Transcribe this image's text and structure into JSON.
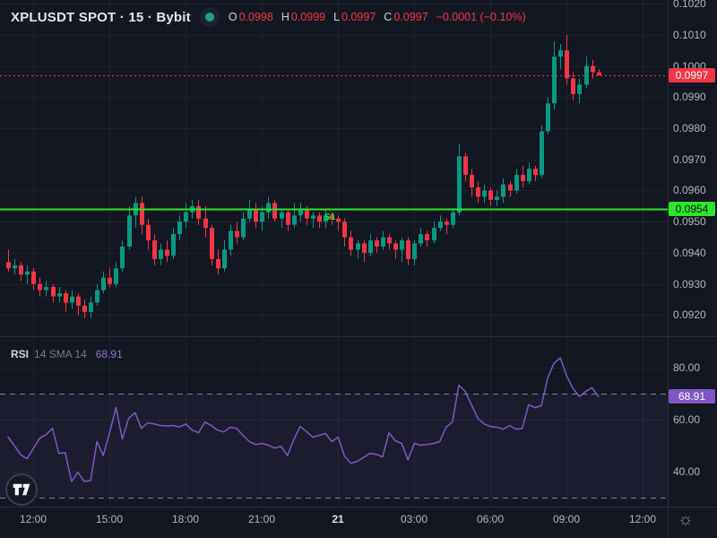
{
  "header": {
    "symbol_title": "XPLUSDT SPOT · 15 · Bybit",
    "ohlc": {
      "o_label": "O",
      "o_value": "0.0998",
      "h_label": "H",
      "h_value": "0.0999",
      "l_label": "L",
      "l_value": "0.0997",
      "c_label": "C",
      "c_value": "0.0997",
      "change": "−0.0001 (−0.10%)"
    }
  },
  "rsi_header": {
    "name": "RSI",
    "params": "14 SMA 14",
    "value": "68.91"
  },
  "price_axis": {
    "labels": [
      "0.1020",
      "0.1010",
      "0.1000",
      "0.0990",
      "0.0980",
      "0.0970",
      "0.0960",
      "0.0950",
      "0.0940",
      "0.0930",
      "0.0920"
    ],
    "last_price_tag": "0.0997",
    "pivot_tag": "0.0954"
  },
  "rsi_axis": {
    "labels": [
      "80.00",
      "60.00",
      "40.00"
    ],
    "value_tag": "68.91"
  },
  "time_axis": {
    "labels": [
      {
        "text": "12:00",
        "candle_index": 4
      },
      {
        "text": "15:00",
        "candle_index": 16
      },
      {
        "text": "18:00",
        "candle_index": 28
      },
      {
        "text": "21:00",
        "candle_index": 40
      },
      {
        "text": "21",
        "candle_index": 52,
        "emphasis": true
      },
      {
        "text": "03:00",
        "candle_index": 64
      },
      {
        "text": "06:00",
        "candle_index": 76
      },
      {
        "text": "09:00",
        "candle_index": 88
      },
      {
        "text": "12:00",
        "candle_index": 100
      }
    ]
  },
  "colors": {
    "background": "#131722",
    "grid": "#1e222d",
    "separator": "#2a2e39",
    "up": "#089981",
    "down": "#f23645",
    "pivot_green": "#2be62b",
    "last_price_red": "#f23645",
    "rsi_purple": "#7e57c2",
    "rsi_band_fill": "rgba(126,87,194,0.09)",
    "band_dash": "#8f929c"
  },
  "chart_data": {
    "type": "candlestick",
    "title": "XPLUSDT SPOT · 15 · Bybit",
    "interval_minutes": 15,
    "price_multiplier": 0.0001,
    "price_range": [
      0.09132,
      0.10212
    ],
    "price_gridlines": [
      0.102,
      0.101,
      0.1,
      0.099,
      0.098,
      0.097,
      0.096,
      0.095,
      0.094,
      0.093,
      0.092
    ],
    "levels": {
      "s1_label": "S1",
      "s1": 0.0954,
      "last_price": 0.0997
    },
    "last_candle_ohlc": {
      "open": 0.0998,
      "high": 0.0999,
      "low": 0.0997,
      "close": 0.0997,
      "change": -0.0001,
      "change_pct": -0.1
    },
    "candles_ohlc_x10000": [
      [
        937,
        941,
        934,
        935
      ],
      [
        935,
        938,
        933,
        936
      ],
      [
        936,
        937,
        931,
        933
      ],
      [
        933,
        936,
        930,
        934
      ],
      [
        934,
        935,
        928,
        930
      ],
      [
        930,
        932,
        926,
        928
      ],
      [
        928,
        931,
        926,
        929
      ],
      [
        929,
        930,
        924,
        926
      ],
      [
        926,
        929,
        924,
        927
      ],
      [
        927,
        928,
        921,
        924
      ],
      [
        924,
        928,
        922,
        926
      ],
      [
        926,
        927,
        920,
        923
      ],
      [
        923,
        925,
        919,
        921
      ],
      [
        921,
        926,
        919,
        924
      ],
      [
        924,
        930,
        923,
        928
      ],
      [
        928,
        934,
        927,
        932
      ],
      [
        932,
        935,
        929,
        930
      ],
      [
        930,
        937,
        929,
        935
      ],
      [
        935,
        944,
        934,
        942
      ],
      [
        942,
        955,
        941,
        952
      ],
      [
        952,
        958,
        948,
        956
      ],
      [
        956,
        958,
        946,
        949
      ],
      [
        949,
        951,
        941,
        944
      ],
      [
        944,
        946,
        936,
        938
      ],
      [
        938,
        943,
        936,
        941
      ],
      [
        941,
        944,
        937,
        939
      ],
      [
        939,
        948,
        938,
        946
      ],
      [
        946,
        952,
        944,
        950
      ],
      [
        950,
        956,
        948,
        953
      ],
      [
        953,
        957,
        951,
        955
      ],
      [
        955,
        957,
        949,
        951
      ],
      [
        951,
        955,
        945,
        948
      ],
      [
        948,
        949,
        936,
        938
      ],
      [
        938,
        941,
        933,
        935
      ],
      [
        935,
        944,
        934,
        941
      ],
      [
        941,
        949,
        939,
        947
      ],
      [
        947,
        950,
        943,
        945
      ],
      [
        945,
        953,
        944,
        951
      ],
      [
        951,
        957,
        950,
        954
      ],
      [
        954,
        956,
        948,
        950
      ],
      [
        950,
        955,
        947,
        953
      ],
      [
        953,
        958,
        951,
        956
      ],
      [
        956,
        957,
        950,
        951
      ],
      [
        951,
        954,
        948,
        953
      ],
      [
        953,
        954,
        947,
        949
      ],
      [
        949,
        956,
        948,
        952
      ],
      [
        952,
        956,
        950,
        954
      ],
      [
        954,
        955,
        949,
        951
      ],
      [
        951,
        953,
        948,
        952
      ],
      [
        952,
        953,
        948,
        950
      ],
      [
        950,
        954,
        948,
        952
      ],
      [
        952,
        953,
        949,
        951
      ],
      [
        951,
        952,
        947,
        950
      ],
      [
        950,
        951,
        942,
        945
      ],
      [
        945,
        947,
        939,
        941
      ],
      [
        941,
        944,
        938,
        943
      ],
      [
        943,
        944,
        937,
        940
      ],
      [
        940,
        946,
        939,
        944
      ],
      [
        944,
        945,
        940,
        942
      ],
      [
        942,
        947,
        941,
        945
      ],
      [
        945,
        946,
        941,
        943
      ],
      [
        943,
        944,
        938,
        941
      ],
      [
        941,
        945,
        937,
        944
      ],
      [
        944,
        945,
        936,
        938
      ],
      [
        938,
        944,
        936,
        943
      ],
      [
        943,
        948,
        942,
        946
      ],
      [
        946,
        947,
        942,
        944
      ],
      [
        944,
        950,
        943,
        948
      ],
      [
        948,
        952,
        947,
        950
      ],
      [
        950,
        951,
        946,
        949
      ],
      [
        949,
        954,
        948,
        953
      ],
      [
        953,
        975,
        952,
        971
      ],
      [
        971,
        972,
        963,
        965
      ],
      [
        965,
        967,
        958,
        961
      ],
      [
        961,
        963,
        956,
        958
      ],
      [
        958,
        962,
        956,
        960
      ],
      [
        960,
        961,
        955,
        957
      ],
      [
        957,
        960,
        955,
        958
      ],
      [
        958,
        964,
        956,
        962
      ],
      [
        962,
        963,
        958,
        960
      ],
      [
        960,
        967,
        959,
        965
      ],
      [
        965,
        968,
        961,
        963
      ],
      [
        963,
        969,
        962,
        967
      ],
      [
        967,
        968,
        963,
        965
      ],
      [
        965,
        981,
        964,
        979
      ],
      [
        979,
        990,
        978,
        988
      ],
      [
        988,
        1008,
        986,
        1003
      ],
      [
        1003,
        1007,
        999,
        1005
      ],
      [
        1005,
        1010,
        994,
        996
      ],
      [
        996,
        998,
        989,
        991
      ],
      [
        991,
        996,
        988,
        994
      ],
      [
        994,
        1003,
        993,
        1000
      ],
      [
        1000,
        1002,
        996,
        998
      ],
      [
        998,
        999,
        997,
        997
      ]
    ],
    "rsi": {
      "name": "RSI",
      "length": 14,
      "smoothing": "SMA 14",
      "last_value": 68.91,
      "range": [
        26.6,
        92.1
      ],
      "gridlines": [
        80,
        60,
        40
      ],
      "bands": [
        70,
        30
      ],
      "values": [
        53.3,
        50,
        46.5,
        45,
        49,
        52.9,
        54.3,
        56.7,
        47,
        47.4,
        36.3,
        39.8,
        36.3,
        36.6,
        51.6,
        46.2,
        55,
        64.7,
        52.6,
        60.6,
        62.7,
        56.7,
        58.8,
        58.4,
        57.8,
        57.6,
        57.8,
        57.2,
        58.4,
        56,
        55,
        59.1,
        57.8,
        56,
        55.3,
        57.1,
        56.7,
        54,
        51.6,
        50.5,
        50.9,
        50.2,
        49.1,
        49.8,
        46.2,
        52.3,
        57.4,
        55.5,
        53.3,
        54,
        54.7,
        51.6,
        53.3,
        46,
        43.3,
        44,
        45.5,
        47.1,
        46.7,
        45.7,
        55,
        51.9,
        50.9,
        44.6,
        50.9,
        50.2,
        50.5,
        50.9,
        51.6,
        57.1,
        59.1,
        73.3,
        70.9,
        65.7,
        60.6,
        58.4,
        57.4,
        57.1,
        56.4,
        57.8,
        56.4,
        56.7,
        65.7,
        64.7,
        65.4,
        76.1,
        81.7,
        83.8,
        76.8,
        72,
        68.9,
        70.9,
        72.3,
        68.91
      ]
    }
  }
}
